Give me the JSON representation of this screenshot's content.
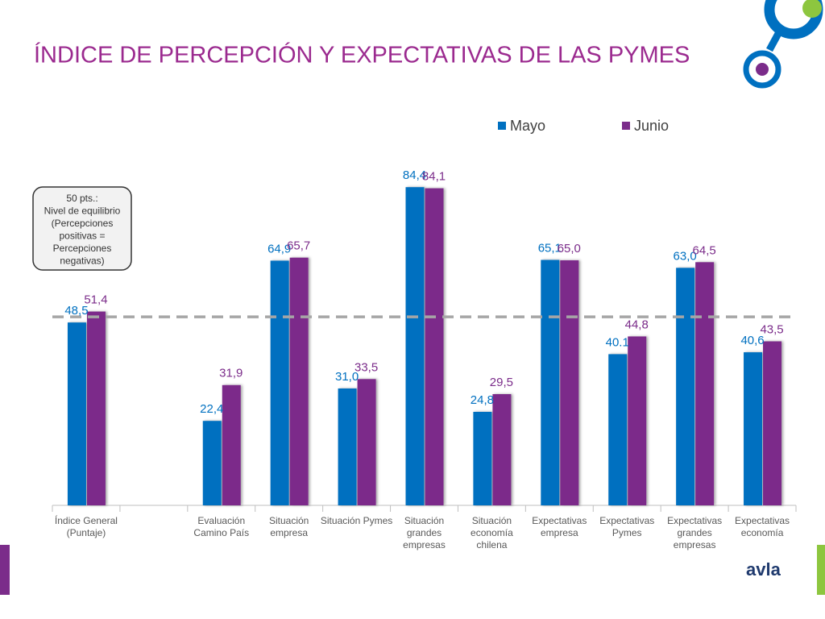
{
  "chart_data": {
    "type": "bar",
    "title": "ÍNDICE DE PERCEPCIÓN Y EXPECTATIVAS DE LAS PYMES",
    "categories": [
      [
        "Índice General",
        "(Puntaje)"
      ],
      null,
      [
        "Evaluación",
        "Camino País"
      ],
      [
        "Situación",
        "empresa"
      ],
      [
        "Situación Pymes"
      ],
      [
        "Situación",
        "grandes",
        "empresas"
      ],
      [
        "Situación",
        "economía",
        "chilena"
      ],
      [
        "Expectativas",
        "empresa"
      ],
      [
        "Expectativas",
        "Pymes"
      ],
      [
        "Expectativas",
        "grandes",
        "empresas"
      ],
      [
        "Expectativas",
        "economía"
      ]
    ],
    "series": [
      {
        "name": "Mayo",
        "color": "#0070c0",
        "values": [
          48.5,
          null,
          22.4,
          64.9,
          31.0,
          84.4,
          24.8,
          65.1,
          40.1,
          63.0,
          40.6
        ],
        "value_labels": [
          "48,5",
          null,
          "22,4",
          "64,9",
          "31,0",
          "84,4",
          "24,8",
          "65,1",
          "40.1",
          "63,0",
          "40,6"
        ]
      },
      {
        "name": "Junio",
        "color": "#7b2c8a",
        "values": [
          51.4,
          null,
          31.9,
          65.7,
          33.5,
          84.1,
          29.5,
          65.0,
          44.8,
          64.5,
          43.5
        ],
        "value_labels": [
          "51,4",
          null,
          "31,9",
          "65,7",
          "33,5",
          "84,1",
          "29,5",
          "65,0",
          "44,8",
          "64,5",
          "43,5"
        ]
      }
    ],
    "ylim": [
      0,
      90
    ],
    "reference_line": 50,
    "annotation": [
      "50 pts.:",
      "Nivel de equilibrio",
      "(Percepciones",
      "positivas =",
      "Percepciones",
      "negativas)"
    ],
    "logo": "avla"
  }
}
